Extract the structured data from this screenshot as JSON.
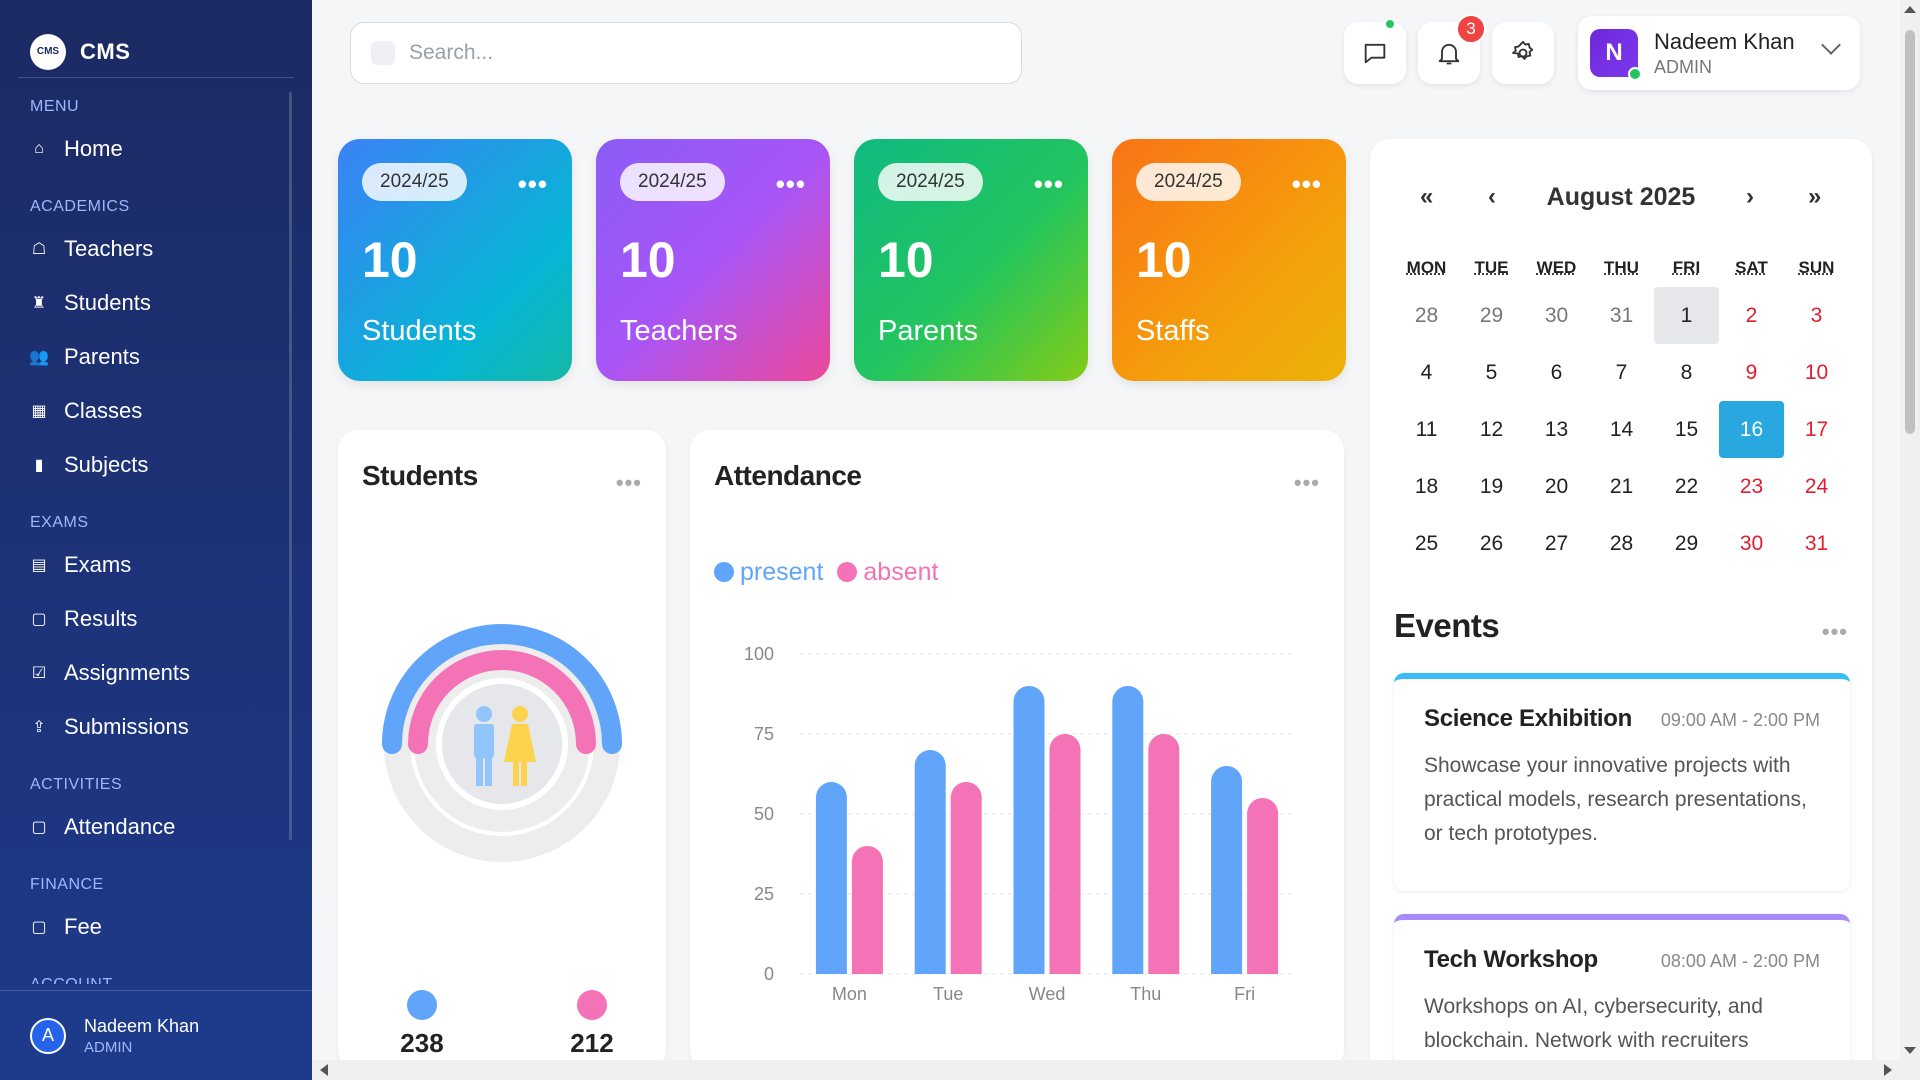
{
  "brand": {
    "name": "CMS",
    "logo_text": "CMS"
  },
  "sidebar": {
    "sections": [
      {
        "label": "MENU",
        "items": [
          {
            "label": "Home",
            "icon": "home-icon"
          }
        ]
      },
      {
        "label": "ACADEMICS",
        "items": [
          {
            "label": "Teachers",
            "icon": "teacher-icon"
          },
          {
            "label": "Students",
            "icon": "student-icon"
          },
          {
            "label": "Parents",
            "icon": "parents-icon"
          },
          {
            "label": "Classes",
            "icon": "classes-icon"
          },
          {
            "label": "Subjects",
            "icon": "book-icon"
          }
        ]
      },
      {
        "label": "EXAMS",
        "items": [
          {
            "label": "Exams",
            "icon": "exam-icon"
          },
          {
            "label": "Results",
            "icon": "clipboard-icon"
          },
          {
            "label": "Assignments",
            "icon": "checkbox-icon"
          },
          {
            "label": "Submissions",
            "icon": "upload-icon"
          }
        ]
      },
      {
        "label": "ACTIVITIES",
        "items": [
          {
            "label": "Attendance",
            "icon": "clipboard-icon"
          }
        ]
      },
      {
        "label": "FINANCE",
        "items": [
          {
            "label": "Fee",
            "icon": "clipboard-icon"
          }
        ]
      },
      {
        "label": "ACCOUNT",
        "items": []
      }
    ],
    "user": {
      "initial": "A",
      "name": "Nadeem Khan",
      "role": "ADMIN"
    }
  },
  "header": {
    "search_placeholder": "Search...",
    "notifications_count": "3",
    "user": {
      "initial": "N",
      "name": "Nadeem Khan",
      "role": "ADMIN"
    }
  },
  "stats": [
    {
      "year": "2024/25",
      "value": "10",
      "label": "Students"
    },
    {
      "year": "2024/25",
      "value": "10",
      "label": "Teachers"
    },
    {
      "year": "2024/25",
      "value": "10",
      "label": "Parents"
    },
    {
      "year": "2024/25",
      "value": "10",
      "label": "Staffs"
    }
  ],
  "students_panel": {
    "title": "Students",
    "boys": "238",
    "girls": "212",
    "colors": {
      "boys": "#60a5fa",
      "girls": "#f472b6"
    }
  },
  "attendance_panel": {
    "title": "Attendance",
    "legend": {
      "present": "present",
      "absent": "absent"
    }
  },
  "chart_data": {
    "type": "bar",
    "categories": [
      "Mon",
      "Tue",
      "Wed",
      "Thu",
      "Fri"
    ],
    "series": [
      {
        "name": "present",
        "color": "#60a5fa",
        "values": [
          60,
          70,
          90,
          90,
          65
        ]
      },
      {
        "name": "absent",
        "color": "#f472b6",
        "values": [
          40,
          60,
          75,
          75,
          55
        ]
      }
    ],
    "yticks": [
      "0",
      "25",
      "50",
      "75",
      "100"
    ],
    "ylim": [
      0,
      100
    ],
    "grid": true,
    "legend": "top-left"
  },
  "calendar": {
    "title": "August 2025",
    "nav": {
      "prev_year": "«",
      "prev": "‹",
      "next": "›",
      "next_year": "»"
    },
    "day_names": [
      "MON",
      "TUE",
      "WED",
      "THU",
      "FRI",
      "SAT",
      "SUN"
    ],
    "weeks": [
      [
        "28",
        "29",
        "30",
        "31",
        "1",
        "2",
        "3"
      ],
      [
        "4",
        "5",
        "6",
        "7",
        "8",
        "9",
        "10"
      ],
      [
        "11",
        "12",
        "13",
        "14",
        "15",
        "16",
        "17"
      ],
      [
        "18",
        "19",
        "20",
        "21",
        "22",
        "23",
        "24"
      ],
      [
        "25",
        "26",
        "27",
        "28",
        "29",
        "30",
        "31"
      ]
    ],
    "selected": "1",
    "today": "16"
  },
  "events": {
    "title": "Events",
    "items": [
      {
        "title": "Science Exhibition",
        "time": "09:00 AM - 2:00 PM",
        "desc": "Showcase your innovative projects with practical models, research presentations, or tech prototypes.",
        "color": "#38bdf8"
      },
      {
        "title": "Tech Workshop",
        "time": "08:00 AM - 2:00 PM",
        "desc": "Workshops on AI, cybersecurity, and blockchain. Network with recruiters",
        "color": "#a78bfa"
      }
    ]
  }
}
